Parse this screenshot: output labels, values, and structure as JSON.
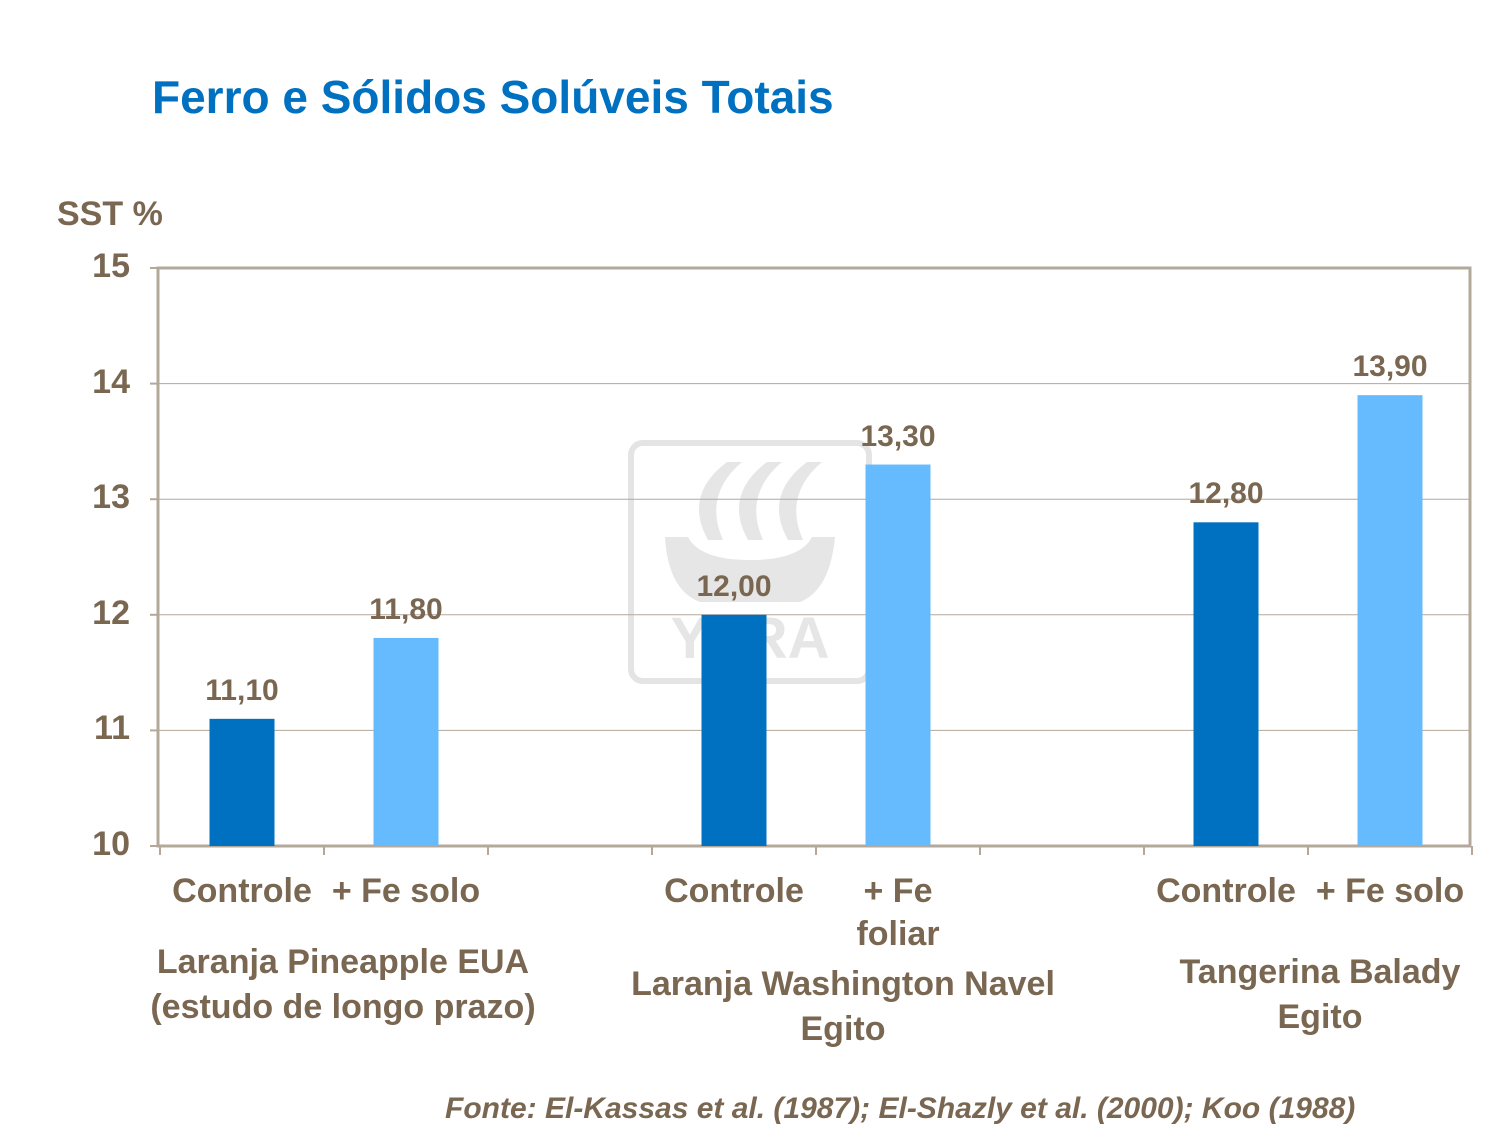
{
  "title": "Ferro e Sólidos Solúveis Totais",
  "source": "Fonte: El-Kassas  et al. (1987); El-Shazly  et al. (2000); Koo (1988)",
  "watermark": "YARA",
  "colors": {
    "controle": "#0070c0",
    "fe": "#66bbff",
    "text": "#7a6752",
    "title": "#0070c0"
  },
  "chart_data": {
    "type": "bar",
    "ylabel": "SST %",
    "ylim": [
      10,
      15
    ],
    "yticks": [
      "10",
      "11",
      "12",
      "13",
      "14",
      "15"
    ],
    "grid": true,
    "groups": [
      {
        "label": "Laranja Pineapple EUA\n(estudo de longo prazo)",
        "bars": [
          {
            "category": "Controle",
            "value": 11.1,
            "label": "11,10"
          },
          {
            "category": "+ Fe solo",
            "value": 11.8,
            "label": "11,80"
          }
        ]
      },
      {
        "label": "Laranja Washington Navel\nEgito",
        "bars": [
          {
            "category": "Controle",
            "value": 12.0,
            "label": "12,00"
          },
          {
            "category": "+ Fe\nfoliar",
            "value": 13.3,
            "label": "13,30"
          }
        ]
      },
      {
        "label": "Tangerina Balady\nEgito",
        "bars": [
          {
            "category": "Controle",
            "value": 12.8,
            "label": "12,80"
          },
          {
            "category": "+ Fe solo",
            "value": 13.9,
            "label": "13,90"
          }
        ]
      }
    ]
  }
}
